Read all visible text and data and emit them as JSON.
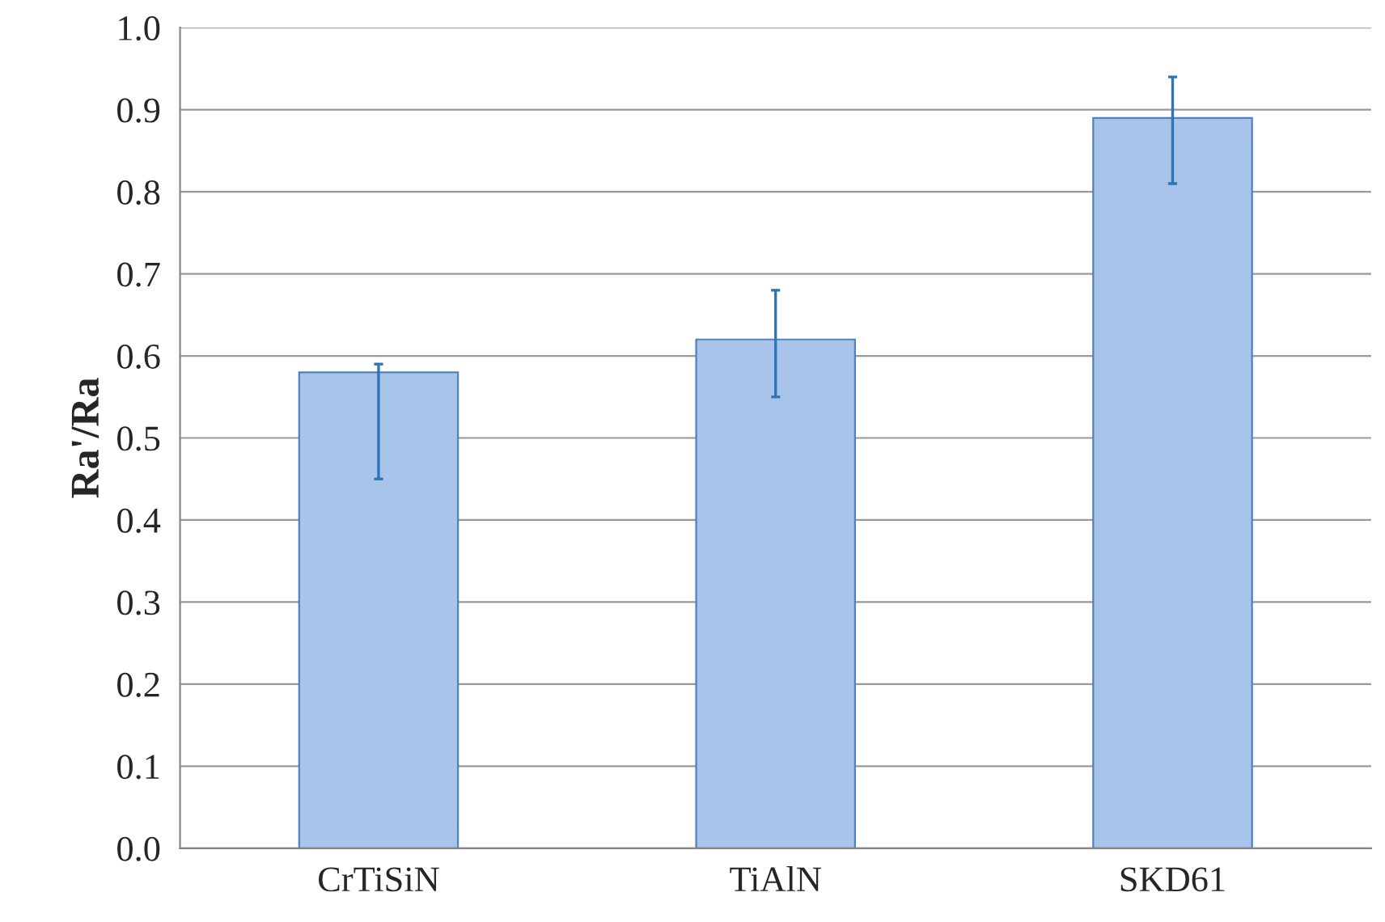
{
  "chart_data": {
    "type": "bar",
    "ylabel": "Ra'/Ra",
    "categories": [
      "CrTiSiN",
      "TiAlN",
      "SKD61"
    ],
    "values": [
      0.58,
      0.62,
      0.89
    ],
    "errors": [
      [
        0.45,
        0.59
      ],
      [
        0.55,
        0.68
      ],
      [
        0.81,
        0.94
      ]
    ],
    "color": "#a9c4eb",
    "ylim": [
      0,
      1.0
    ],
    "yticks": [
      {
        "value": 0,
        "label": "0.0"
      },
      {
        "value": 0.1,
        "label": "0.1"
      },
      {
        "value": 0.2,
        "label": "0.2"
      },
      {
        "value": 0.3,
        "label": "0.3"
      },
      {
        "value": 0.4,
        "label": "0.4"
      },
      {
        "value": 0.5,
        "label": "0.5"
      },
      {
        "value": 0.6,
        "label": "0.6"
      },
      {
        "value": 0.7,
        "label": "0.7"
      },
      {
        "value": 0.8,
        "label": "0.8"
      },
      {
        "value": 0.9,
        "label": "0.9"
      },
      {
        "value": 1.0,
        "label": "1.0"
      }
    ],
    "grid": "y",
    "legend": false
  }
}
